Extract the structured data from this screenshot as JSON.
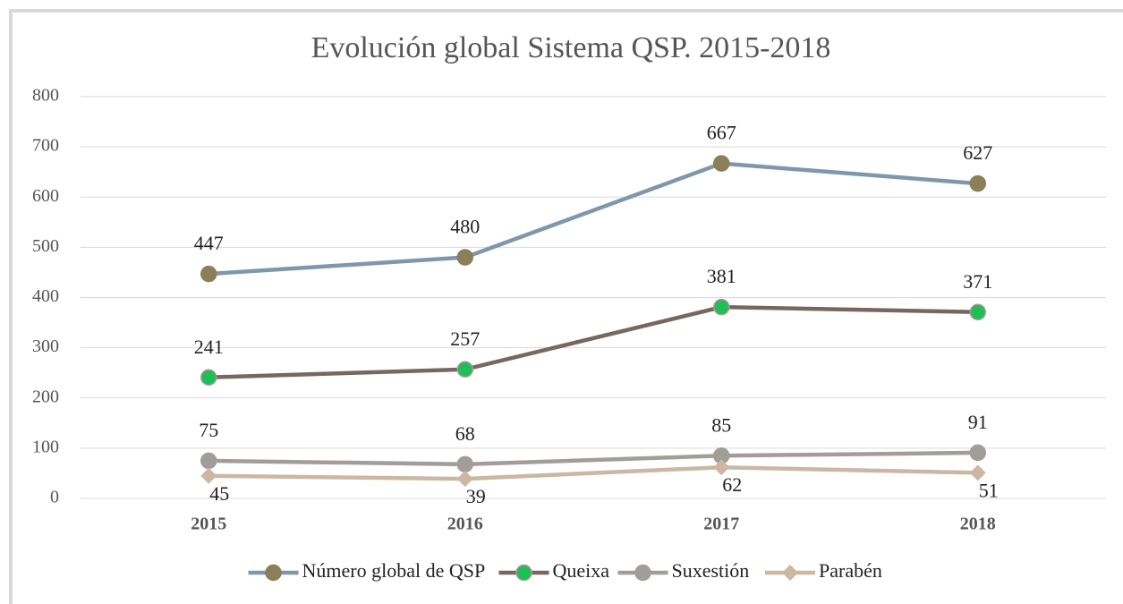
{
  "chart_data": {
    "type": "line",
    "title": "Evolución global Sistema QSP.  2015-2018",
    "categories": [
      "2015",
      "2016",
      "2017",
      "2018"
    ],
    "series": [
      {
        "name": "Número global de QSP",
        "color": "#7f97aa",
        "marker_color": "#8b7f58",
        "marker": "circle",
        "label_position": "above",
        "values": [
          447,
          480,
          667,
          627
        ]
      },
      {
        "name": "Queixa",
        "color": "#77675f",
        "marker_color": "#1fbf55",
        "marker": "circle",
        "label_position": "above",
        "values": [
          241,
          257,
          381,
          371
        ]
      },
      {
        "name": "Suxestión",
        "color": "#a29d99",
        "marker_color": "#a19d99",
        "marker": "circle",
        "label_position": "above",
        "values": [
          75,
          68,
          85,
          91
        ]
      },
      {
        "name": "Parabén",
        "color": "#cbb7a2",
        "marker_color": "#cbb7a2",
        "marker": "diamond",
        "label_position": "below",
        "values": [
          45,
          39,
          62,
          51
        ]
      }
    ],
    "ylim": [
      0,
      800
    ],
    "yticks": [
      0,
      100,
      200,
      300,
      400,
      500,
      600,
      700,
      800
    ],
    "grid": true,
    "legend": "bottom"
  }
}
